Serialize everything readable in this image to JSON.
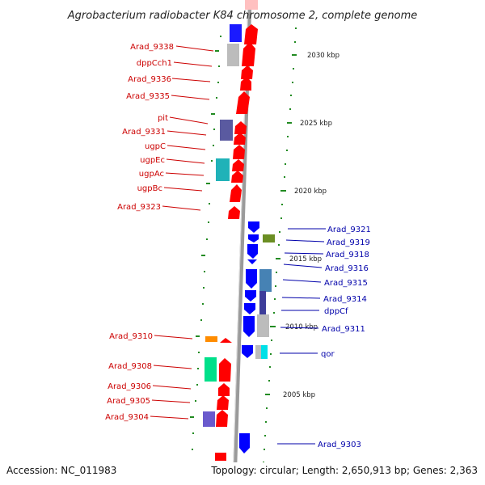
{
  "title": "Agrobacterium radiobacter K84 chromosome 2, complete genome",
  "footer": {
    "accession": "Accession: NC_011983",
    "topology": "Topology: circular; Length: 2,650,913 bp; Genes: 2,363"
  },
  "colors": {
    "forward": "#ff0000",
    "reverse": "#0000ff",
    "forward_label": "#cc0000",
    "reverse_label": "#0000aa",
    "backbone": "#999999",
    "tick": "#228b22"
  },
  "ruler_labels": [
    "2030 kbp",
    "2025 kbp",
    "2020 kbp",
    "2015 kbp",
    "2010 kbp",
    "2005 kbp"
  ],
  "forward_genes": [
    "Arad_9338",
    "dppCch1",
    "Arad_9336",
    "Arad_9335",
    "pit",
    "Arad_9331",
    "ugpC",
    "ugpEc",
    "ugpAc",
    "ugpBc",
    "Arad_9323",
    "Arad_9310",
    "Arad_9308",
    "Arad_9306",
    "Arad_9305",
    "Arad_9304"
  ],
  "reverse_genes": [
    "Arad_9321",
    "Arad_9319",
    "Arad_9318",
    "Arad_9316",
    "Arad_9315",
    "Arad_9314",
    "dppCf",
    "Arad_9311",
    "qor",
    "Arad_9303"
  ]
}
